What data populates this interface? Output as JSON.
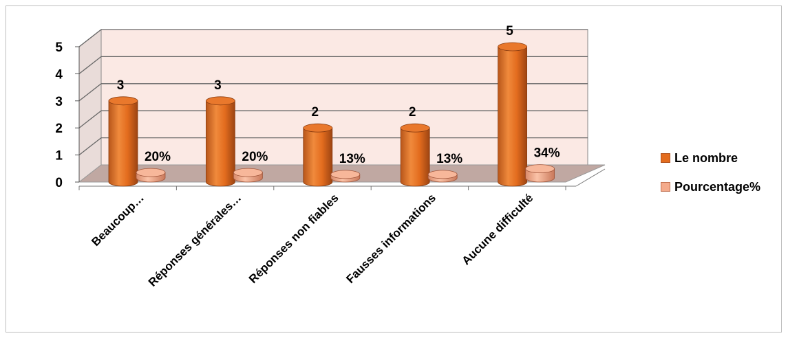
{
  "chart_data": {
    "type": "bar",
    "style": "3d-cylinder",
    "categories": [
      "Beaucoup…",
      "Réponses générales…",
      "Réponses non fiables",
      "Fausses informations",
      "Aucune difficulté"
    ],
    "series": [
      {
        "name": "Le nombre",
        "values": [
          3,
          3,
          2,
          2,
          5
        ],
        "labels": [
          "3",
          "3",
          "2",
          "2",
          "5"
        ],
        "color": "#e36c1e"
      },
      {
        "name": "Pourcentage%",
        "values": [
          0.2,
          0.2,
          0.13,
          0.13,
          0.34
        ],
        "labels": [
          "20%",
          "20%",
          "13%",
          "13%",
          "34%"
        ],
        "color": "#f4ab8c"
      }
    ],
    "yticks": [
      "0",
      "1",
      "2",
      "3",
      "4",
      "5"
    ],
    "ylim": [
      0,
      5
    ],
    "grid": true,
    "legend_position": "right",
    "wall_color": "#fbe9e4",
    "floor_color": "#c0a8a2"
  }
}
